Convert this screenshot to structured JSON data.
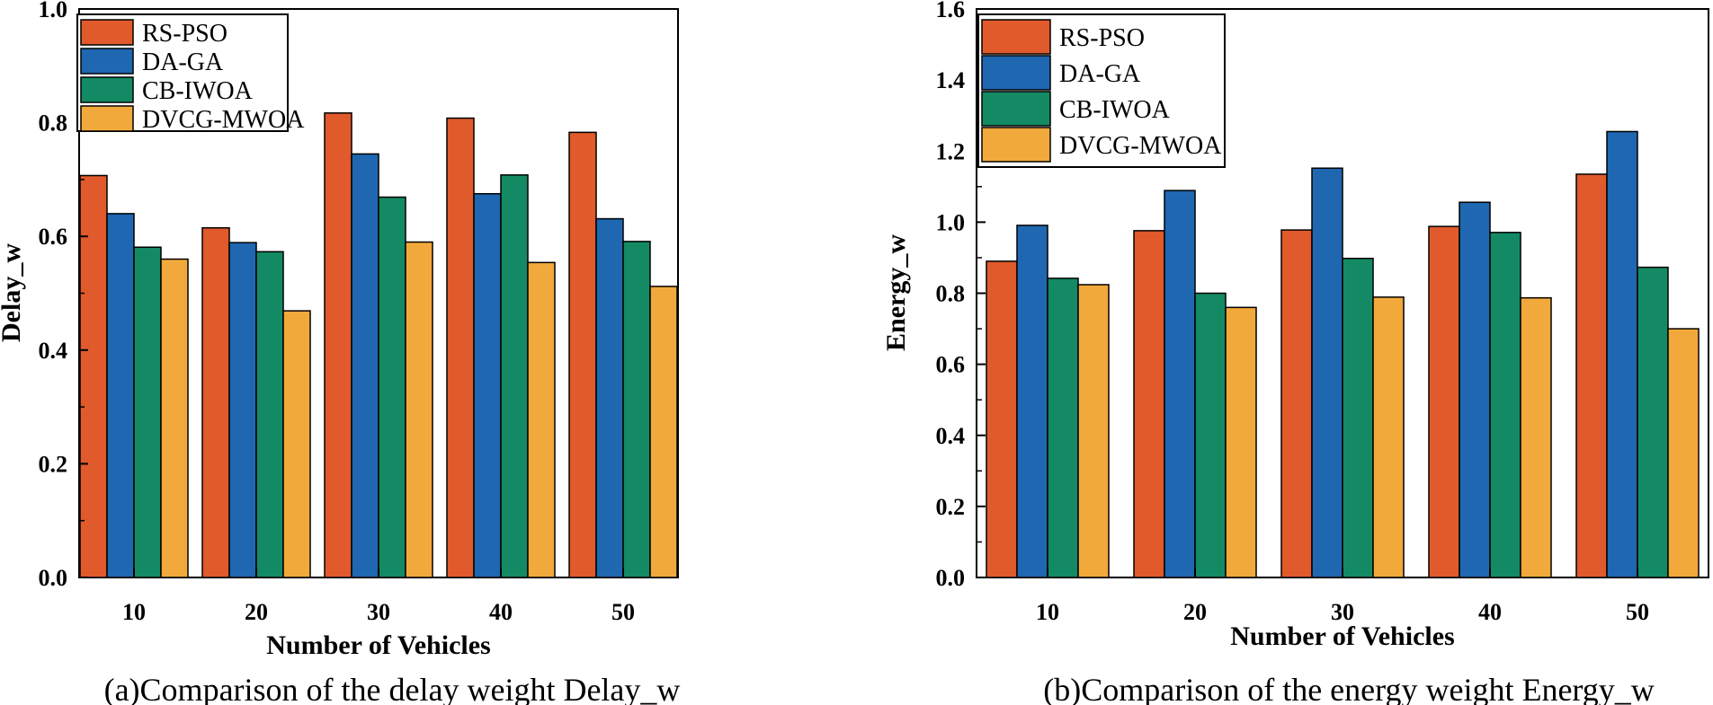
{
  "chart_data": [
    {
      "type": "bar",
      "caption": "(a)Comparison of the delay weight Delay_w",
      "xlabel": "Number of Vehicles",
      "ylabel": "Delay_w",
      "ylim": [
        0,
        1.0
      ],
      "yticks": [
        "0.0",
        "0.2",
        "0.4",
        "0.6",
        "0.8",
        "1.0"
      ],
      "categories": [
        "10",
        "20",
        "30",
        "40",
        "50"
      ],
      "legend_position": "top-left",
      "series": [
        {
          "name": "RS-PSO",
          "color": "#E05A2B",
          "values": [
            0.707,
            0.615,
            0.817,
            0.808,
            0.783
          ]
        },
        {
          "name": "DA-GA",
          "color": "#1F67B1",
          "values": [
            0.64,
            0.589,
            0.745,
            0.675,
            0.631
          ]
        },
        {
          "name": "CB-IWOA",
          "color": "#138A63",
          "values": [
            0.581,
            0.573,
            0.669,
            0.708,
            0.591
          ]
        },
        {
          "name": "DVCG-MWOA",
          "color": "#F2A93B",
          "values": [
            0.56,
            0.469,
            0.59,
            0.554,
            0.512
          ]
        }
      ]
    },
    {
      "type": "bar",
      "caption": "(b)Comparison of the energy weight Energy_w",
      "xlabel": "Number of Vehicles",
      "ylabel": "Energy_w",
      "ylim": [
        0,
        1.6
      ],
      "yticks": [
        "0.0",
        "0.2",
        "0.4",
        "0.6",
        "0.8",
        "1.0",
        "1.2",
        "1.4",
        "1.6"
      ],
      "categories": [
        "10",
        "20",
        "30",
        "40",
        "50"
      ],
      "legend_position": "top-left",
      "series": [
        {
          "name": "RS-PSO",
          "color": "#E05A2B",
          "values": [
            0.89,
            0.976,
            0.978,
            0.988,
            1.135
          ]
        },
        {
          "name": "DA-GA",
          "color": "#1F67B1",
          "values": [
            0.991,
            1.089,
            1.152,
            1.056,
            1.255
          ]
        },
        {
          "name": "CB-IWOA",
          "color": "#138A63",
          "values": [
            0.842,
            0.8,
            0.898,
            0.971,
            0.873
          ]
        },
        {
          "name": "DVCG-MWOA",
          "color": "#F2A93B",
          "values": [
            0.824,
            0.76,
            0.789,
            0.787,
            0.7
          ]
        }
      ]
    }
  ]
}
